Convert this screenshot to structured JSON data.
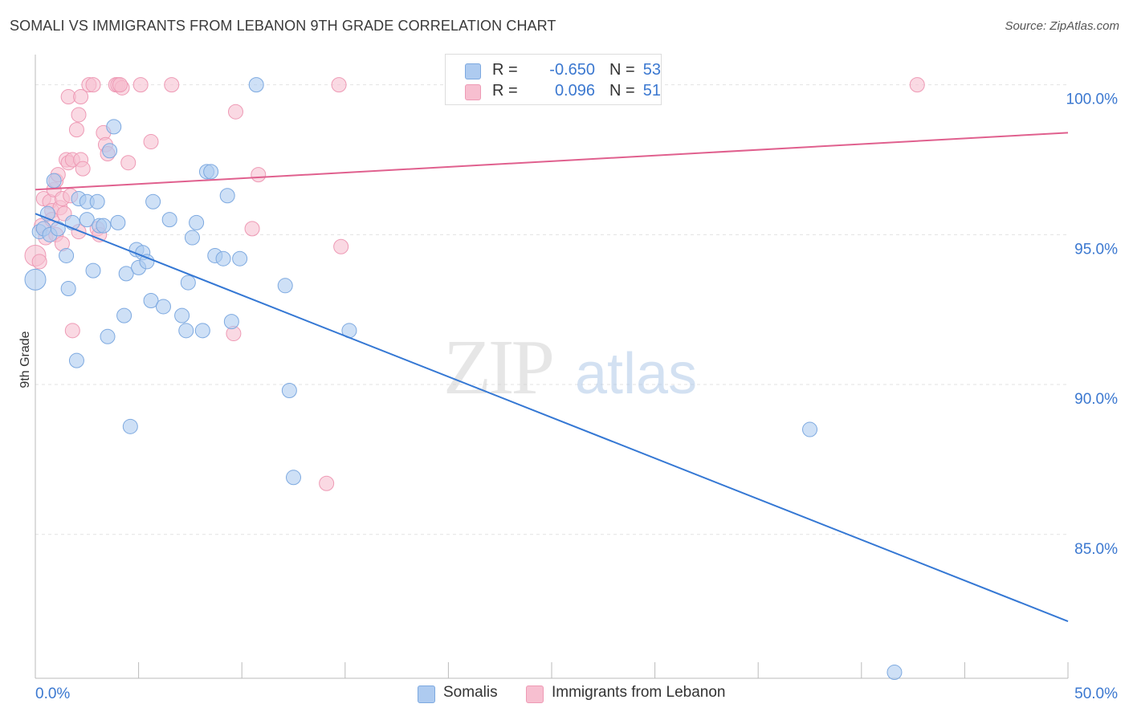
{
  "header": {
    "title": "SOMALI VS IMMIGRANTS FROM LEBANON 9TH GRADE CORRELATION CHART",
    "source": "Source: ZipAtlas.com"
  },
  "stats": {
    "blue": {
      "r_label": "R =",
      "r_value": "-0.650",
      "n_label": "N =",
      "n_value": "53"
    },
    "pink": {
      "r_label": "R =",
      "r_value": "0.096",
      "n_label": "N =",
      "n_value": "51"
    }
  },
  "legend": {
    "blue_label": "Somalis",
    "pink_label": "Immigrants from Lebanon"
  },
  "watermark": {
    "zip": "ZIP",
    "atlas": "atlas"
  },
  "colors": {
    "blue_fill": "#aecbf0",
    "blue_stroke": "#7da9e0",
    "blue_line": "#3578d4",
    "pink_fill": "#f7bfd0",
    "pink_stroke": "#ee9ab5",
    "pink_line": "#e0608e",
    "tick_label": "#3b78d0",
    "grid": "#e3e3e3"
  },
  "chart_data": {
    "type": "scatter",
    "title": "SOMALI VS IMMIGRANTS FROM LEBANON 9TH GRADE CORRELATION CHART",
    "xlabel": "",
    "ylabel": "9th Grade",
    "xlim": [
      0,
      50
    ],
    "ylim": [
      80.2,
      100.9
    ],
    "x_tick_labels": [
      "0.0%",
      "50.0%"
    ],
    "y_ticks": [
      85,
      90,
      95,
      100
    ],
    "y_tick_labels": [
      "85.0%",
      "90.0%",
      "95.0%",
      "100.0%"
    ],
    "grid": "horizontal dashed",
    "legend_position": "bottom-center",
    "series": [
      {
        "name": "Somalis",
        "color": "#aecbf0",
        "r": -0.65,
        "n": 53,
        "trend": {
          "x": [
            0,
            50
          ],
          "y": [
            95.7,
            82.1
          ]
        },
        "points": [
          [
            0.0,
            93.5
          ],
          [
            0.2,
            95.1
          ],
          [
            0.4,
            95.2
          ],
          [
            0.6,
            95.7
          ],
          [
            0.7,
            95.0
          ],
          [
            0.9,
            96.8
          ],
          [
            1.1,
            95.2
          ],
          [
            1.5,
            94.3
          ],
          [
            1.6,
            93.2
          ],
          [
            1.8,
            95.4
          ],
          [
            2.0,
            90.8
          ],
          [
            2.1,
            96.2
          ],
          [
            2.5,
            95.5
          ],
          [
            2.5,
            96.1
          ],
          [
            2.8,
            93.8
          ],
          [
            3.0,
            96.1
          ],
          [
            3.1,
            95.3
          ],
          [
            3.3,
            95.3
          ],
          [
            3.5,
            91.6
          ],
          [
            3.6,
            97.8
          ],
          [
            3.8,
            98.6
          ],
          [
            4.0,
            95.4
          ],
          [
            4.3,
            92.3
          ],
          [
            4.4,
            93.7
          ],
          [
            4.6,
            88.6
          ],
          [
            4.9,
            94.5
          ],
          [
            5.0,
            93.9
          ],
          [
            5.2,
            94.4
          ],
          [
            5.4,
            94.1
          ],
          [
            5.6,
            92.8
          ],
          [
            5.7,
            96.1
          ],
          [
            6.2,
            92.6
          ],
          [
            6.5,
            95.5
          ],
          [
            7.1,
            92.3
          ],
          [
            7.3,
            91.8
          ],
          [
            7.4,
            93.4
          ],
          [
            7.6,
            94.9
          ],
          [
            7.8,
            95.4
          ],
          [
            8.1,
            91.8
          ],
          [
            8.3,
            97.1
          ],
          [
            8.5,
            97.1
          ],
          [
            8.7,
            94.3
          ],
          [
            9.1,
            94.2
          ],
          [
            9.3,
            96.3
          ],
          [
            9.5,
            92.1
          ],
          [
            9.9,
            94.2
          ],
          [
            10.7,
            100.0
          ],
          [
            12.1,
            93.3
          ],
          [
            12.3,
            89.8
          ],
          [
            12.5,
            86.9
          ],
          [
            15.2,
            91.8
          ],
          [
            37.5,
            88.5
          ],
          [
            41.6,
            80.4
          ]
        ]
      },
      {
        "name": "Immigrants from Lebanon",
        "color": "#f7bfd0",
        "r": 0.096,
        "n": 51,
        "trend": {
          "x": [
            0,
            50
          ],
          "y": [
            96.5,
            98.4
          ]
        },
        "points": [
          [
            0.0,
            94.3
          ],
          [
            0.2,
            94.1
          ],
          [
            0.3,
            95.3
          ],
          [
            0.4,
            96.2
          ],
          [
            0.5,
            94.9
          ],
          [
            0.7,
            96.1
          ],
          [
            0.8,
            95.8
          ],
          [
            0.8,
            95.5
          ],
          [
            0.9,
            96.5
          ],
          [
            1.0,
            96.8
          ],
          [
            1.0,
            95.0
          ],
          [
            1.1,
            97.0
          ],
          [
            1.2,
            95.9
          ],
          [
            1.3,
            94.7
          ],
          [
            1.3,
            96.2
          ],
          [
            1.4,
            95.7
          ],
          [
            1.5,
            97.5
          ],
          [
            1.6,
            97.4
          ],
          [
            1.6,
            99.6
          ],
          [
            1.7,
            96.3
          ],
          [
            1.8,
            91.8
          ],
          [
            1.8,
            97.5
          ],
          [
            2.0,
            98.5
          ],
          [
            2.1,
            99.0
          ],
          [
            2.1,
            95.1
          ],
          [
            2.2,
            97.5
          ],
          [
            2.2,
            99.6
          ],
          [
            2.3,
            97.2
          ],
          [
            2.6,
            100.0
          ],
          [
            2.8,
            100.0
          ],
          [
            3.0,
            95.2
          ],
          [
            3.1,
            95.0
          ],
          [
            3.3,
            98.4
          ],
          [
            3.4,
            98.0
          ],
          [
            3.5,
            97.7
          ],
          [
            3.9,
            100.0
          ],
          [
            4.0,
            100.0
          ],
          [
            4.2,
            99.9
          ],
          [
            4.1,
            100.0
          ],
          [
            4.5,
            97.4
          ],
          [
            5.1,
            100.0
          ],
          [
            5.6,
            98.1
          ],
          [
            6.6,
            100.0
          ],
          [
            9.6,
            91.7
          ],
          [
            9.7,
            99.1
          ],
          [
            10.5,
            95.2
          ],
          [
            10.8,
            97.0
          ],
          [
            14.1,
            86.7
          ],
          [
            14.7,
            100.0
          ],
          [
            14.8,
            94.6
          ],
          [
            42.7,
            100.0
          ]
        ]
      }
    ]
  }
}
